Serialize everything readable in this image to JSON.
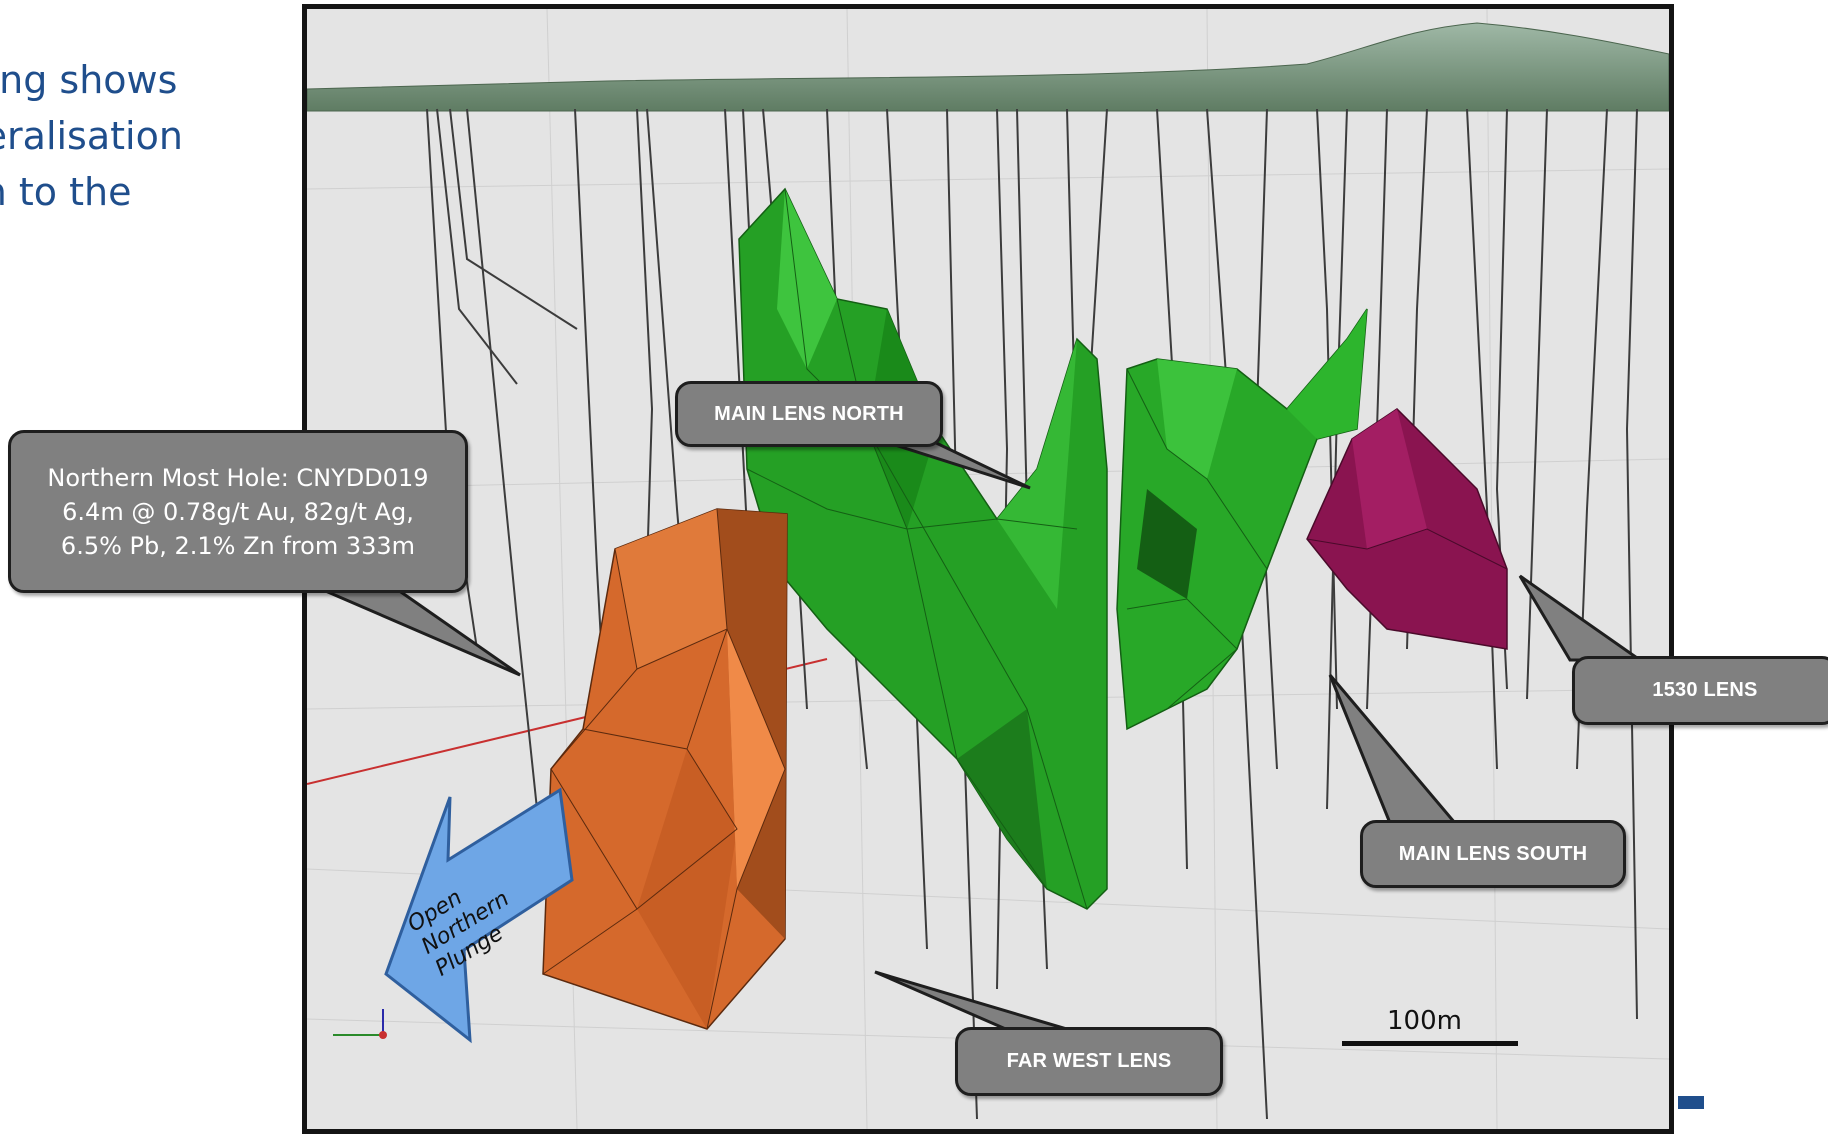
{
  "intro_lines": [
    "Drilling shows",
    "mineralisation",
    "open to the"
  ],
  "labels": {
    "main_lens_north": "MAIN LENS NORTH",
    "main_lens_south": "MAIN LENS SOUTH",
    "lens_1530": "1530 LENS",
    "far_west_lens": "FAR WEST LENS",
    "open_northern_plunge": [
      "Open",
      "Northern",
      "Plunge"
    ]
  },
  "hole_callout": [
    "Northern Most Hole: CNYDD019",
    "6.4m @ 0.78g/t Au, 82g/t Ag,",
    "6.5% Pb, 2.1% Zn  from 333m"
  ],
  "scale_bar_label": "100m",
  "colors": {
    "main_lens": "#22a522",
    "far_west_lens": "#d5692c",
    "lens_1530": "#8a1450",
    "arrow": "#6ea6e6",
    "callout": "#808080",
    "text_blue": "#1f4e8c"
  }
}
